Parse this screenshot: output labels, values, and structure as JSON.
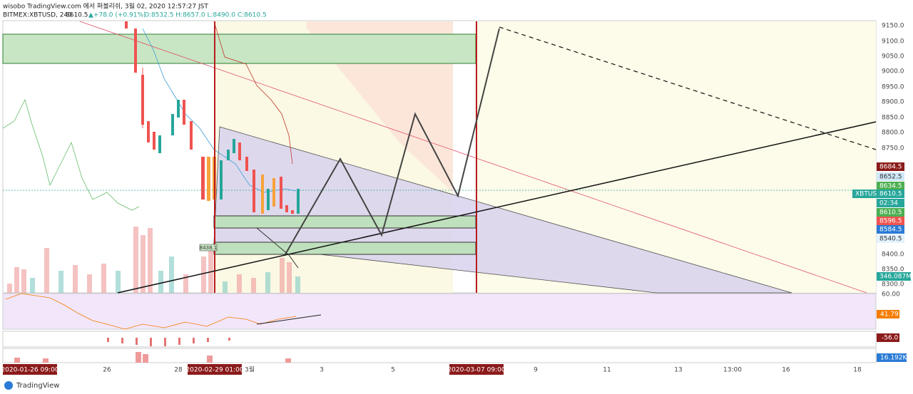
{
  "header": {
    "publisher": "wisobo TradingView.com 에서 퍼블리쉬, 3월 02, 2020 12:57:27 JST",
    "symbol": "BITMEX:XBTUSD, 240",
    "last": "8610.5",
    "change": "▲+78.0 (+0.91%)",
    "ohlc": "O:8532.5 H:8657.0 L:8490.0 C:8610.5"
  },
  "price_axis": [
    "9150.0",
    "9100.0",
    "9050.0",
    "9000.0",
    "8950.0",
    "8900.0",
    "8850.0",
    "8800.0",
    "8750.0",
    "8400.0",
    "8350.0",
    "8300.0"
  ],
  "price_badges": [
    "8684.5",
    "8652.5",
    "8634.5",
    "XBTUSD",
    "8610.5",
    "02:34",
    "8610.5",
    "8596.5",
    "8584.5",
    "8540.5",
    "346.087M"
  ],
  "rsi_axis": [
    "60.00",
    "41.79"
  ],
  "macd_badge": "-56.0",
  "volume_badge": "16.192K",
  "drawing_label": "8438.1",
  "time_axis": [
    "26",
    "28",
    "3월",
    "3",
    "5",
    "9",
    "11",
    "13",
    "13:00",
    "16",
    "18"
  ],
  "time_badges": [
    "2020-01-26   09:00",
    "2020-02-29   01:00",
    "2020-03-07   09:00"
  ],
  "footer": {
    "brand": "TradingView"
  }
}
